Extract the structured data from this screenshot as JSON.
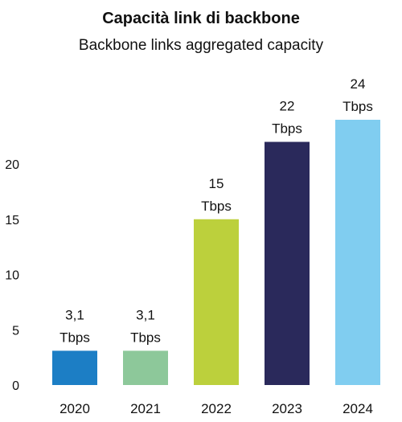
{
  "chart_data": {
    "type": "bar",
    "title": "Capacità link di backbone",
    "subtitle": "Backbone links aggregated capacity",
    "categories": [
      "2020",
      "2021",
      "2022",
      "2023",
      "2024"
    ],
    "values": [
      3.1,
      3.1,
      15,
      22,
      24
    ],
    "value_labels": [
      "3,1",
      "3,1",
      "15",
      "22",
      "24"
    ],
    "unit": "Tbps",
    "colors": [
      "#1c7ec5",
      "#8dc89a",
      "#bcd03c",
      "#2a295b",
      "#80cdf0"
    ],
    "yticks": [
      "0",
      "5",
      "10",
      "15",
      "20"
    ],
    "ylim": [
      0,
      25
    ],
    "xlabel": "",
    "ylabel": "",
    "grid": false,
    "legend": "none"
  }
}
